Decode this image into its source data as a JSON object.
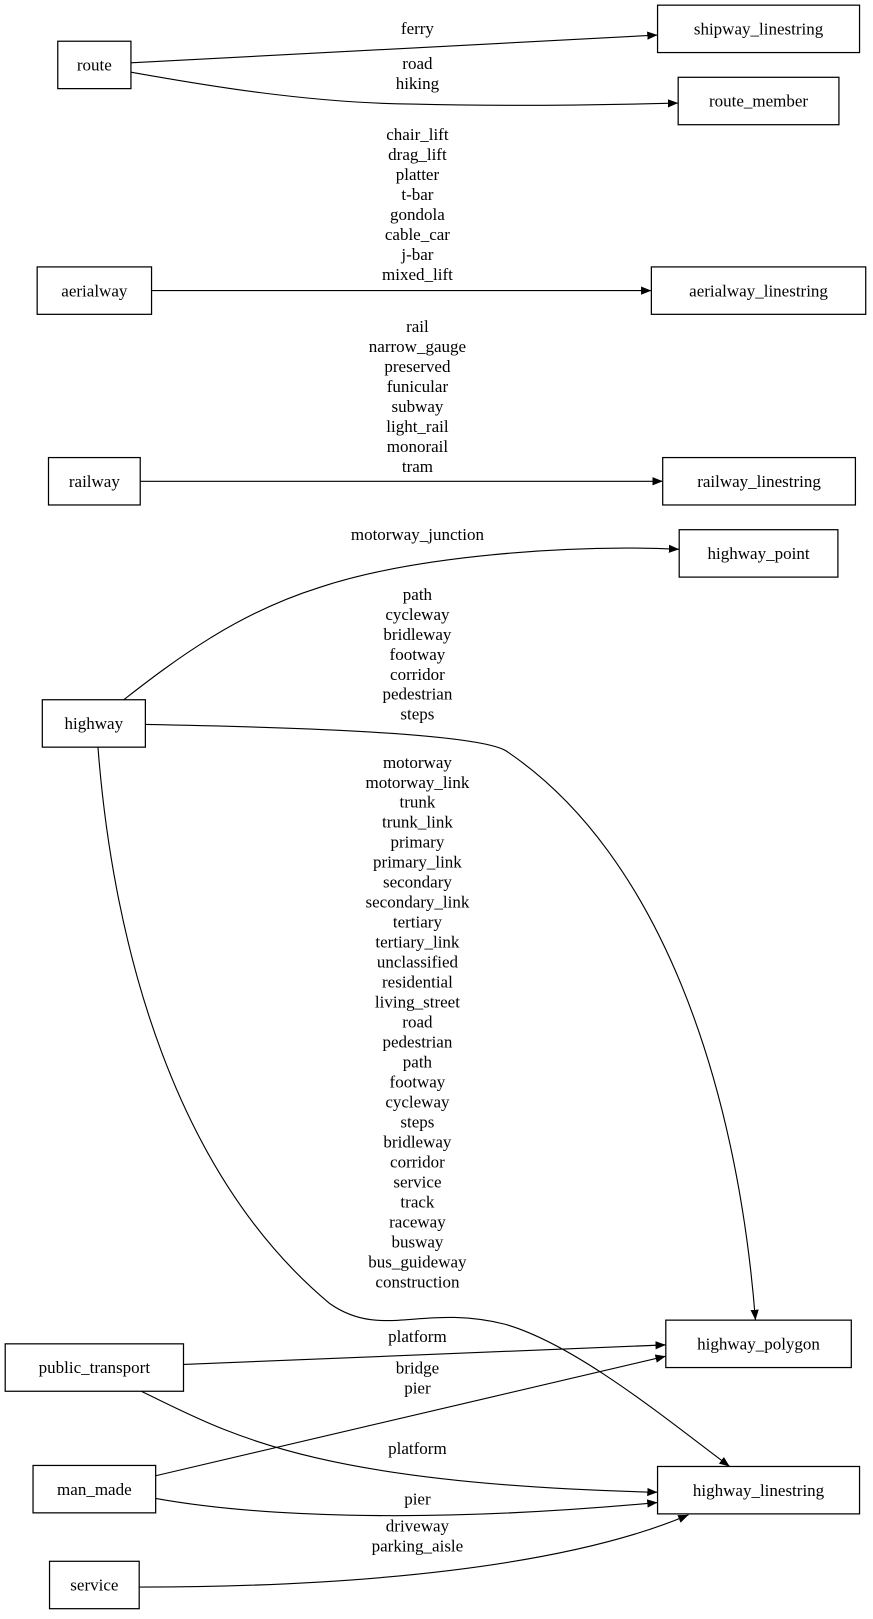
{
  "nodes": {
    "route": "route",
    "shipway_linestring": "shipway_linestring",
    "route_member": "route_member",
    "aerialway": "aerialway",
    "aerialway_linestring": "aerialway_linestring",
    "railway": "railway",
    "railway_linestring": "railway_linestring",
    "highway_point": "highway_point",
    "highway": "highway",
    "highway_polygon": "highway_polygon",
    "highway_linestring": "highway_linestring",
    "public_transport": "public_transport",
    "man_made": "man_made",
    "service": "service"
  },
  "edges": [
    {
      "from": "route",
      "to": "shipway_linestring",
      "labels": [
        "ferry"
      ]
    },
    {
      "from": "route",
      "to": "route_member",
      "labels": [
        "road",
        "hiking"
      ]
    },
    {
      "from": "aerialway",
      "to": "aerialway_linestring",
      "labels": [
        "chair_lift",
        "drag_lift",
        "platter",
        "t-bar",
        "gondola",
        "cable_car",
        "j-bar",
        "mixed_lift"
      ]
    },
    {
      "from": "railway",
      "to": "railway_linestring",
      "labels": [
        "rail",
        "narrow_gauge",
        "preserved",
        "funicular",
        "subway",
        "light_rail",
        "monorail",
        "tram"
      ]
    },
    {
      "from": "highway",
      "to": "highway_point",
      "labels": [
        "motorway_junction"
      ]
    },
    {
      "from": "highway",
      "to": "highway_polygon",
      "labels": [
        "path",
        "cycleway",
        "bridleway",
        "footway",
        "corridor",
        "pedestrian",
        "steps"
      ]
    },
    {
      "from": "highway",
      "to": "highway_linestring",
      "labels": [
        "motorway",
        "motorway_link",
        "trunk",
        "trunk_link",
        "primary",
        "primary_link",
        "secondary",
        "secondary_link",
        "tertiary",
        "tertiary_link",
        "unclassified",
        "residential",
        "living_street",
        "road",
        "pedestrian",
        "path",
        "footway",
        "cycleway",
        "steps",
        "bridleway",
        "corridor",
        "service",
        "track",
        "raceway",
        "busway",
        "bus_guideway",
        "construction"
      ]
    },
    {
      "from": "public_transport",
      "to": "highway_polygon",
      "labels": [
        "platform"
      ]
    },
    {
      "from": "public_transport",
      "to": "highway_linestring",
      "labels": [
        "platform"
      ]
    },
    {
      "from": "man_made",
      "to": "highway_polygon",
      "labels": [
        "bridge",
        "pier"
      ]
    },
    {
      "from": "man_made",
      "to": "highway_linestring",
      "labels": [
        "pier"
      ]
    },
    {
      "from": "service",
      "to": "highway_linestring",
      "labels": [
        "driveway",
        "parking_aisle"
      ]
    }
  ]
}
